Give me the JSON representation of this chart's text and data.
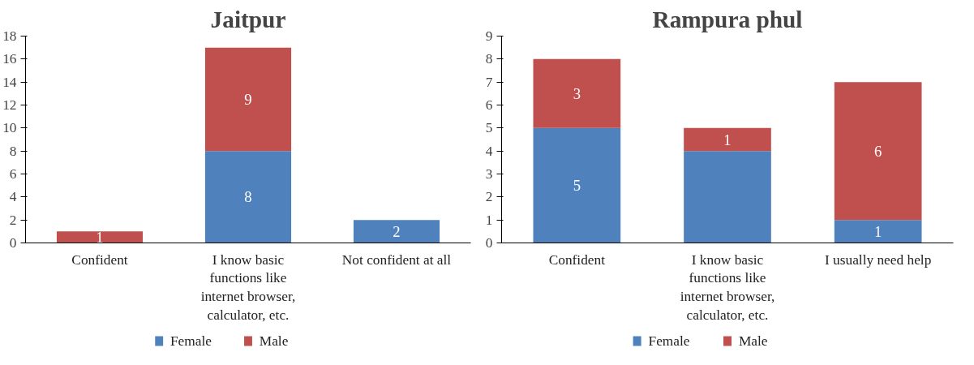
{
  "chart_data": [
    {
      "type": "bar",
      "stacked": true,
      "title": "Jaitpur",
      "categories": [
        "Confident",
        "I know basic functions like internet browser, calculator, etc.",
        "Not confident at all"
      ],
      "series": [
        {
          "name": "Female",
          "color": "#4f81bd",
          "values": [
            null,
            8,
            2
          ],
          "value_labels": [
            null,
            "8",
            "2"
          ]
        },
        {
          "name": "Male",
          "color": "#c0504d",
          "values": [
            1,
            9,
            null
          ],
          "value_labels": [
            "1",
            "9",
            null
          ]
        }
      ],
      "ylim": [
        0,
        18
      ],
      "yticks": [
        0,
        2,
        4,
        6,
        8,
        10,
        12,
        14,
        16,
        18
      ],
      "grid": false,
      "legend": "bottom"
    },
    {
      "type": "bar",
      "stacked": true,
      "title": "Rampura phul",
      "categories": [
        "Confident",
        "I know basic functions like internet browser, calculator, etc.",
        "I usually need help"
      ],
      "series": [
        {
          "name": "Female",
          "color": "#4f81bd",
          "values": [
            5,
            4,
            1
          ],
          "value_labels": [
            "5",
            null,
            "1"
          ]
        },
        {
          "name": "Male",
          "color": "#c0504d",
          "values": [
            3,
            1,
            6
          ],
          "value_labels": [
            "3",
            "1",
            "6"
          ]
        }
      ],
      "ylim": [
        0,
        9
      ],
      "yticks": [
        0,
        1,
        2,
        3,
        4,
        5,
        6,
        7,
        8,
        9
      ],
      "grid": false,
      "legend": "bottom"
    }
  ]
}
